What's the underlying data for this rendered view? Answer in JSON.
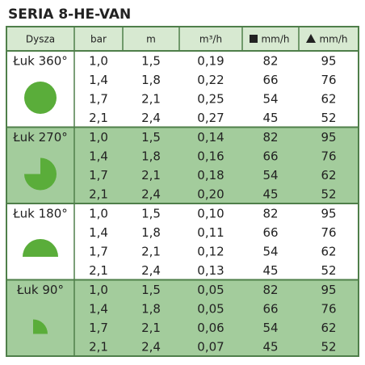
{
  "title": "SERIA 8-HE-VAN",
  "table": {
    "header": [
      "Dysza",
      "bar",
      "m",
      "m³/h",
      "mm/h",
      "mm/h"
    ],
    "groups": [
      {
        "label": "Łuk 360°",
        "rows": [
          [
            "1,0",
            "1,5",
            "0,19",
            "82",
            "95"
          ],
          [
            "1,4",
            "1,8",
            "0,22",
            "66",
            "76"
          ],
          [
            "1,7",
            "2,1",
            "0,25",
            "54",
            "62"
          ],
          [
            "2,1",
            "2,4",
            "0,27",
            "45",
            "52"
          ]
        ]
      },
      {
        "label": "Łuk 270°",
        "rows": [
          [
            "1,0",
            "1,5",
            "0,14",
            "82",
            "95"
          ],
          [
            "1,4",
            "1,8",
            "0,16",
            "66",
            "76"
          ],
          [
            "1,7",
            "2,1",
            "0,18",
            "54",
            "62"
          ],
          [
            "2,1",
            "2,4",
            "0,20",
            "45",
            "52"
          ]
        ]
      },
      {
        "label": "Łuk 180°",
        "rows": [
          [
            "1,0",
            "1,5",
            "0,10",
            "82",
            "95"
          ],
          [
            "1,4",
            "1,8",
            "0,11",
            "66",
            "76"
          ],
          [
            "1,7",
            "2,1",
            "0,12",
            "54",
            "62"
          ],
          [
            "2,1",
            "2,4",
            "0,13",
            "45",
            "52"
          ]
        ]
      },
      {
        "label": "Łuk 90°",
        "rows": [
          [
            "1,0",
            "1,5",
            "0,05",
            "82",
            "95"
          ],
          [
            "1,4",
            "1,8",
            "0,05",
            "66",
            "76"
          ],
          [
            "1,7",
            "2,1",
            "0,06",
            "54",
            "62"
          ],
          [
            "2,1",
            "2,4",
            "0,07",
            "45",
            "52"
          ]
        ]
      }
    ]
  }
}
